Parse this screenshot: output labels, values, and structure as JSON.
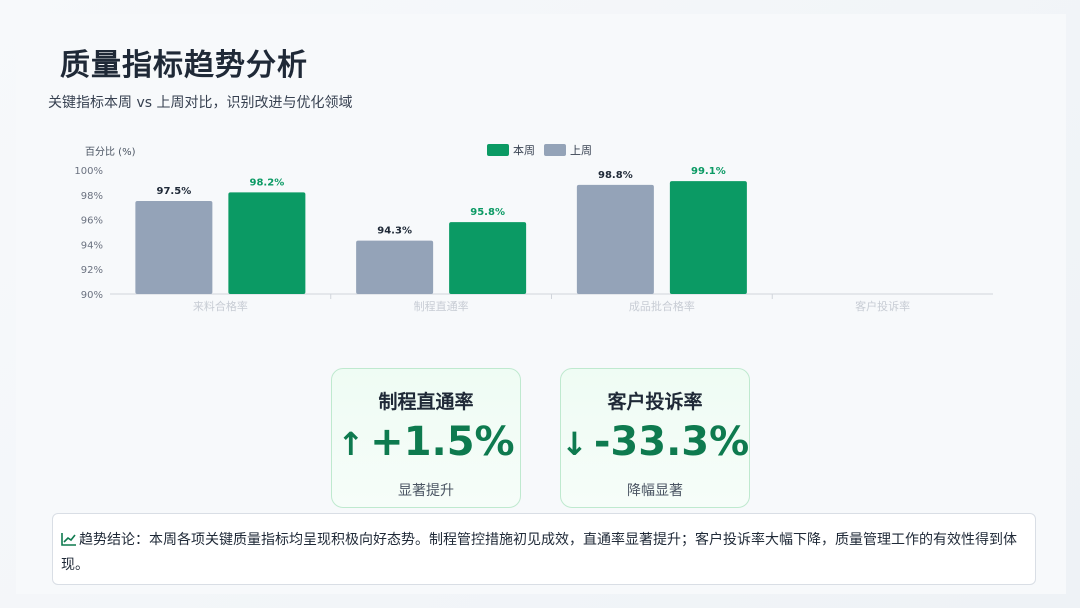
{
  "header": {
    "title": "质量指标趋势分析",
    "subtitle": "关键指标本周 vs 上周对比，识别改进与优化领域"
  },
  "colors": {
    "this_week": "#0b9a64",
    "last_week": "#94a3b8",
    "accent": "#0e7a4f"
  },
  "chart_data": {
    "type": "bar",
    "ylabel": "百分比 (%)",
    "ylim": [
      90,
      100
    ],
    "yticks": [
      "90%",
      "92%",
      "94%",
      "96%",
      "98%",
      "100%"
    ],
    "legend_position": "top-center",
    "categories": [
      "来料合格率",
      "制程直通率",
      "成品批合格率",
      "客户投诉率"
    ],
    "series": [
      {
        "name": "上周",
        "values": [
          97.5,
          94.3,
          98.8,
          null
        ],
        "labels": [
          "97.5%",
          "94.3%",
          "98.8%",
          ""
        ]
      },
      {
        "name": "本周",
        "values": [
          98.2,
          95.8,
          99.1,
          null
        ],
        "labels": [
          "98.2%",
          "95.8%",
          "99.1%",
          ""
        ]
      }
    ],
    "legend": [
      "本周",
      "上周"
    ]
  },
  "cards": [
    {
      "title": "制程直通率",
      "arrow": "↑",
      "value": "+1.5%",
      "desc": "显著提升",
      "icon": "arrow-up-icon"
    },
    {
      "title": "客户投诉率",
      "arrow": "↓",
      "value": "-33.3%",
      "desc": "降幅显著",
      "icon": "arrow-down-icon"
    }
  ],
  "conclusion": {
    "icon": "trend-chart-icon",
    "text": "趋势结论：本周各项关键质量指标均呈现积极向好态势。制程管控措施初见成效，直通率显著提升；客户投诉率大幅下降，质量管理工作的有效性得到体现。"
  }
}
